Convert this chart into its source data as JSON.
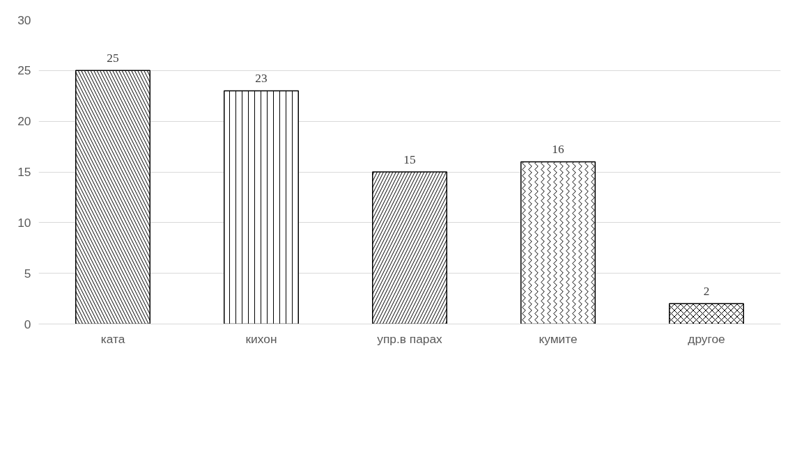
{
  "chart_data": {
    "type": "bar",
    "categories": [
      "ката",
      "кихон",
      "упр.в парах",
      "кумите",
      "другое"
    ],
    "values": [
      25,
      23,
      15,
      16,
      2
    ],
    "color": "#000000",
    "ylim": [
      0,
      30
    ],
    "yticks": [
      0,
      5,
      10,
      15,
      20,
      25,
      30
    ],
    "grid": "y",
    "data_labels": true
  }
}
